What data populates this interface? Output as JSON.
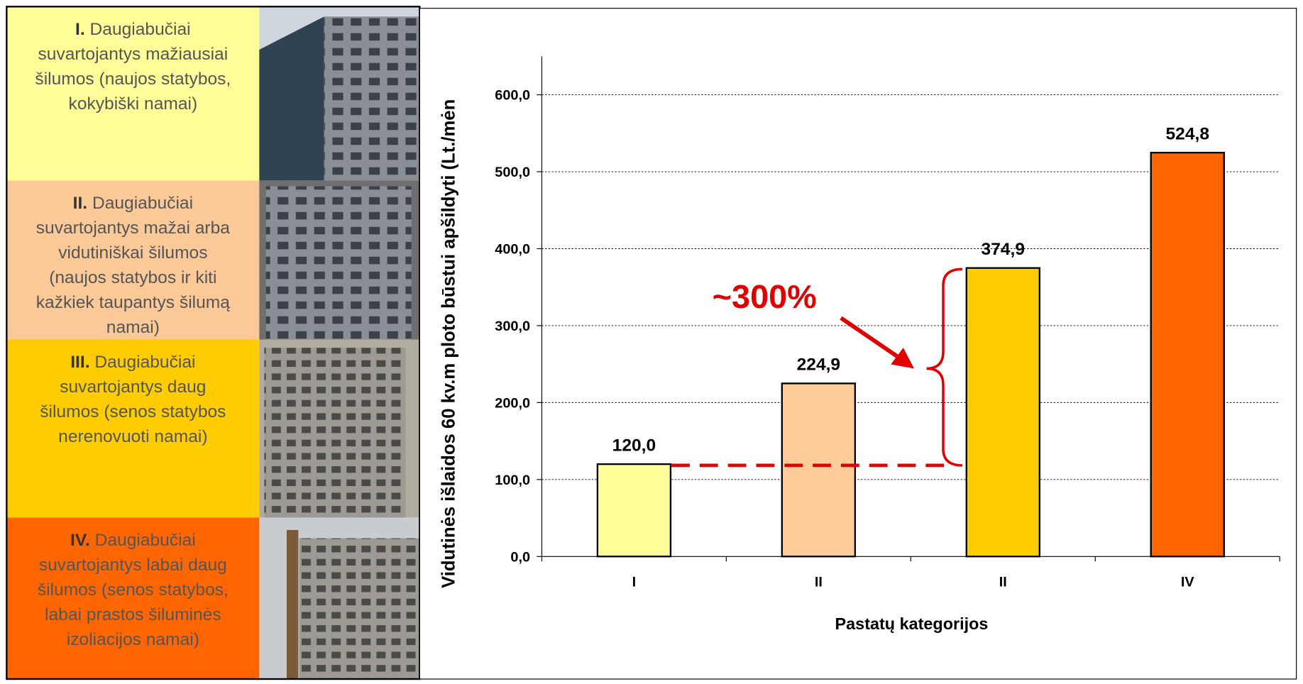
{
  "panel": {
    "rows": [
      {
        "numeral": "I.",
        "lines": [
          "Daugiabučiai",
          "suvartojantys mažiausiai",
          "šilumos (naujos statybos,",
          "kokybiški namai)"
        ],
        "color": "#ffff99"
      },
      {
        "numeral": "II.",
        "lines": [
          "Daugiabučiai",
          "suvartojantys mažai arba",
          "vidutiniškai šilumos",
          "(naujos statybos ir kiti",
          "kažkiek taupantys šilumą",
          "namai)"
        ],
        "color": "#fbc997"
      },
      {
        "numeral": "III.",
        "lines": [
          "Daugiabučiai",
          "suvartojantys daug",
          "šilumos (senos statybos",
          "nerenovuoti namai)"
        ],
        "color": "#ffcc00"
      },
      {
        "numeral": "IV.",
        "lines": [
          "Daugiabučiai",
          "suvartojantys labai daug",
          "šilumos (senos statybos,",
          "labai prastos šiluminės",
          "izoliacijos namai)"
        ],
        "color": "#ff6600"
      }
    ]
  },
  "chart_data": {
    "type": "bar",
    "y_label": "Vidutinės išlaidos 60 kv.m ploto būstui apšildyti (Lt./mėn",
    "x_label": "Pastatų kategorijos",
    "annotation": "~300%",
    "categories": [
      "I",
      "II",
      "II",
      "IV"
    ],
    "values": [
      120.0,
      224.9,
      374.9,
      524.8
    ],
    "value_labels": [
      "120,0",
      "224,9",
      "374,9",
      "524,8"
    ],
    "colors": [
      "#ffff99",
      "#ffcc99",
      "#ffcc00",
      "#ff6600"
    ],
    "ylim": [
      0,
      650
    ],
    "yticks": [
      {
        "value": 0,
        "label": "0,0"
      },
      {
        "value": 100,
        "label": "100,0"
      },
      {
        "value": 200,
        "label": "200,0"
      },
      {
        "value": 300,
        "label": "300,0"
      },
      {
        "value": 400,
        "label": "400,0"
      },
      {
        "value": 500,
        "label": "500,0"
      },
      {
        "value": 600,
        "label": "600,0"
      }
    ],
    "grid": true
  }
}
